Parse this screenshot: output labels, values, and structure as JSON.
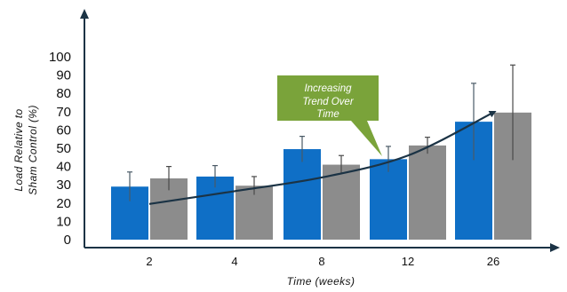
{
  "chart_data": {
    "type": "bar",
    "categories": [
      "2",
      "4",
      "8",
      "12",
      "26"
    ],
    "series": [
      {
        "color": "#0f6fc6",
        "values": [
          29,
          34.5,
          49.5,
          44,
          64.5
        ],
        "error": [
          8,
          6,
          7,
          7,
          21
        ]
      },
      {
        "color": "#8c8c8c",
        "values": [
          33.5,
          29.5,
          41,
          51.5,
          69.5
        ],
        "error": [
          6.5,
          5,
          5,
          4.5,
          26
        ]
      }
    ],
    "trend": {
      "color": "#1b3345",
      "x": [
        0,
        1,
        2,
        3,
        4
      ],
      "y": [
        19.5,
        26.5,
        34,
        46,
        69.5
      ]
    },
    "xlabel": "Time (weeks)",
    "ylabel_lines": [
      "Load Relative to",
      "Sham Control (%)"
    ],
    "yticks": [
      0,
      10,
      20,
      30,
      40,
      50,
      60,
      70,
      80,
      90,
      100
    ],
    "ylim": [
      0,
      100
    ],
    "grid": false,
    "annotation": {
      "lines": [
        "Increasing",
        "Trend Over",
        "Time"
      ],
      "color": "#7aa33a"
    }
  }
}
